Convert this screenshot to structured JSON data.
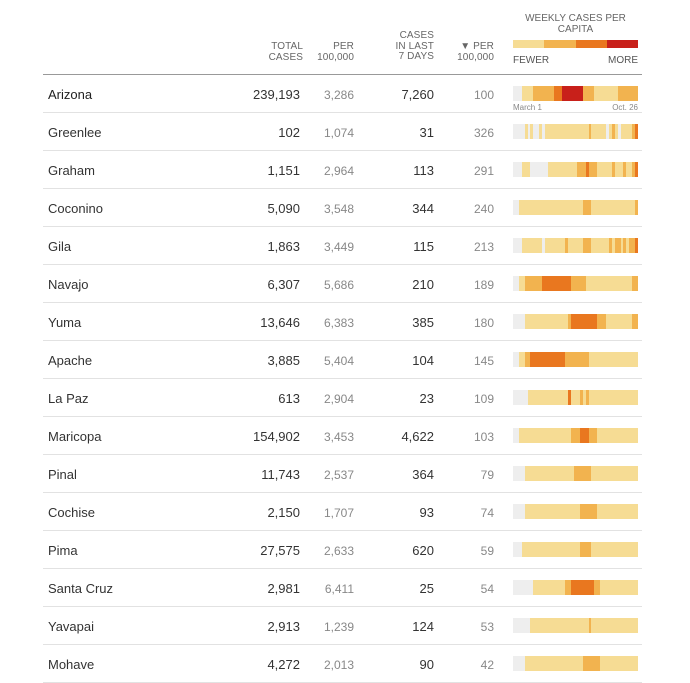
{
  "header": {
    "total": [
      "TOTAL",
      "CASES"
    ],
    "per": [
      "PER",
      "100,000"
    ],
    "cases7": [
      "CASES",
      "IN LAST",
      "7 DAYS"
    ],
    "sorted": [
      "▼ PER",
      "100,000"
    ]
  },
  "legend": {
    "title": "WEEKLY CASES PER CAPITA",
    "fewer": "FEWER",
    "more": "MORE",
    "colors": [
      "#f6dc94",
      "#f2b34f",
      "#e9771f",
      "#c8201a"
    ]
  },
  "state_dates": {
    "start": "March 1",
    "end": "Oct. 26"
  },
  "rows": [
    {
      "name": "Arizona",
      "total": "239,193",
      "per": "3,286",
      "cases7": "7,260",
      "per7": "100",
      "state": true,
      "spark": "0001111222222233344444442222111111112222222"
    },
    {
      "name": "Greenlee",
      "total": "102",
      "per": "1,074",
      "cases7": "31",
      "per7": "326",
      "spark": "0000101001011111111111111121111101210111123"
    },
    {
      "name": "Graham",
      "total": "1,151",
      "per": "2,964",
      "cases7": "113",
      "per7": "291",
      "spark": "0001110000001111111111222322211111211121123"
    },
    {
      "name": "Coconino",
      "total": "5,090",
      "per": "3,548",
      "cases7": "344",
      "per7": "240",
      "spark": "0011111111111111111111112221111111111111112"
    },
    {
      "name": "Gila",
      "total": "1,863",
      "per": "3,449",
      "cases7": "115",
      "per7": "213",
      "spark": "0001111111011111112111112221111112122121223"
    },
    {
      "name": "Navajo",
      "total": "6,307",
      "per": "5,686",
      "cases7": "210",
      "per7": "189",
      "spark": "0011222222333333333322222111111111111111122"
    },
    {
      "name": "Yuma",
      "total": "13,646",
      "per": "6,383",
      "cases7": "385",
      "per7": "180",
      "spark": "0000111111111111111233333333322211111111122"
    },
    {
      "name": "Apache",
      "total": "3,885",
      "per": "5,404",
      "cases7": "104",
      "per7": "145",
      "spark": "0011223333333333332222222211111111111111111"
    },
    {
      "name": "La Paz",
      "total": "613",
      "per": "2,904",
      "cases7": "23",
      "per7": "109",
      "spark": "0000011111111111111311121211111111111111111"
    },
    {
      "name": "Maricopa",
      "total": "154,902",
      "per": "3,453",
      "cases7": "4,622",
      "per7": "103",
      "spark": "0011111111111111111122233322211111111111111"
    },
    {
      "name": "Pinal",
      "total": "11,743",
      "per": "2,537",
      "cases7": "364",
      "per7": "79",
      "spark": "0000111111111111111112222221111111111111111"
    },
    {
      "name": "Cochise",
      "total": "2,150",
      "per": "1,707",
      "cases7": "93",
      "per7": "74",
      "spark": "0000111111111111111111122222211111111111111"
    },
    {
      "name": "Pima",
      "total": "27,575",
      "per": "2,633",
      "cases7": "620",
      "per7": "59",
      "spark": "0001111111111111111111122221111111111111111"
    },
    {
      "name": "Santa Cruz",
      "total": "2,981",
      "per": "6,411",
      "cases7": "25",
      "per7": "54",
      "spark": "0000000111111111112233333333221111111111111"
    },
    {
      "name": "Yavapai",
      "total": "2,913",
      "per": "1,239",
      "cases7": "124",
      "per7": "53",
      "spark": "0000001111111111111111111121111111111111111"
    },
    {
      "name": "Mohave",
      "total": "4,272",
      "per": "2,013",
      "cases7": "90",
      "per7": "42",
      "spark": "0000111111111111111111112222221111111111111"
    }
  ],
  "level_colors": [
    "#eeeeee",
    "#f6dc94",
    "#f2b34f",
    "#e9771f",
    "#c8201a"
  ]
}
